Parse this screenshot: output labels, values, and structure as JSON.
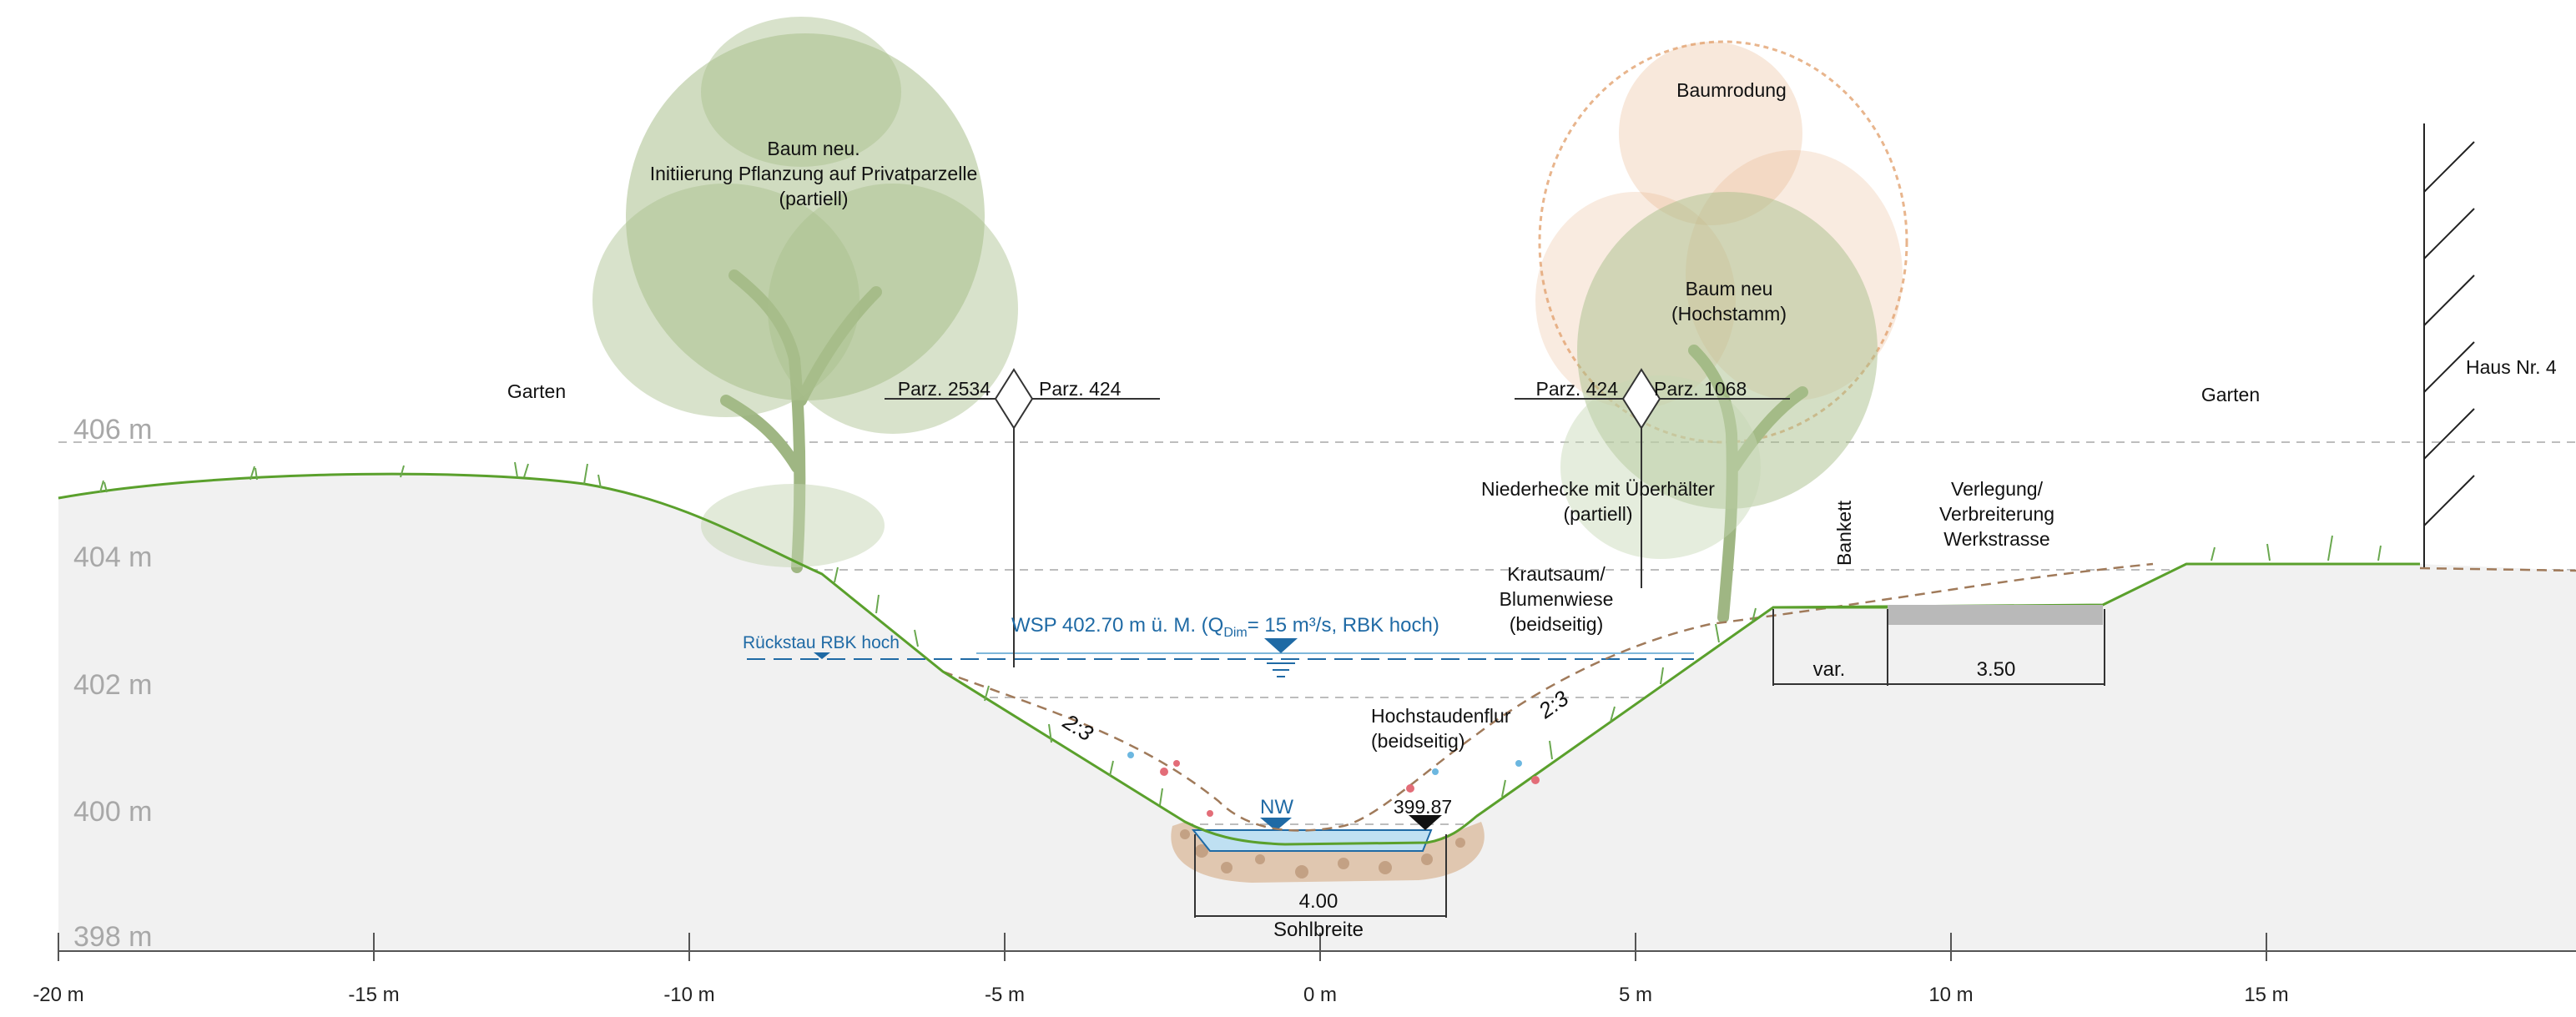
{
  "x_axis": {
    "ticks": [
      "-20 m",
      "-15 m",
      "-10 m",
      "-5 m",
      "0 m",
      "5 m",
      "10 m",
      "15 m"
    ]
  },
  "elevations": [
    "406 m",
    "404 m",
    "402 m",
    "400 m",
    "398 m"
  ],
  "labels": {
    "garden_left": "Garten",
    "garden_right": "Garten",
    "tree_left": [
      "Baum neu.",
      "Initiierung Pflanzung auf Privatparzelle",
      "(partiell)"
    ],
    "tree_remove": "Baumrodung",
    "tree_right": [
      "Baum neu",
      "(Hochstamm)"
    ],
    "parcel_left_a": "Parz. 2534",
    "parcel_left_b": "Parz. 424",
    "parcel_right_a": "Parz. 424",
    "parcel_right_b": "Parz. 1068",
    "hedge": [
      "Niederhecke mit Überhälter",
      "(partiell)"
    ],
    "herb": [
      "Krautsaum/",
      "Blumenwiese",
      "(beidseitig)"
    ],
    "tall_herb": [
      "Hochstaudenflur",
      "(beidseitig)"
    ],
    "bankett": "Bankett",
    "road": [
      "Verlegung/",
      "Verbreiterung",
      "Werkstrasse"
    ],
    "house": "Haus Nr. 4",
    "backwater": "Rückstau RBK hoch",
    "wsp_prefix": "WSP 402.70 m ü. M. (Q",
    "wsp_sub": "Dim",
    "wsp_suffix": "= 15 m³/s, RBK hoch)",
    "nw": "NW",
    "bed_level": "399.87",
    "slope_left": "2:3",
    "slope_right": "2:3",
    "dim_bed": "4.00",
    "dim_bed_caption": "Sohlbreite",
    "dim_var": "var.",
    "dim_road": "3.50"
  },
  "colors": {
    "ground": "#f1f1f1",
    "grass": "#5aa02c",
    "water": "#1f6aa5",
    "water_fill": "#bfe0f2",
    "tree_green": "#a9bf8c",
    "tree_orange": "#e2a271",
    "road": "#b9b9b9",
    "gravel": "#d9b89a"
  }
}
